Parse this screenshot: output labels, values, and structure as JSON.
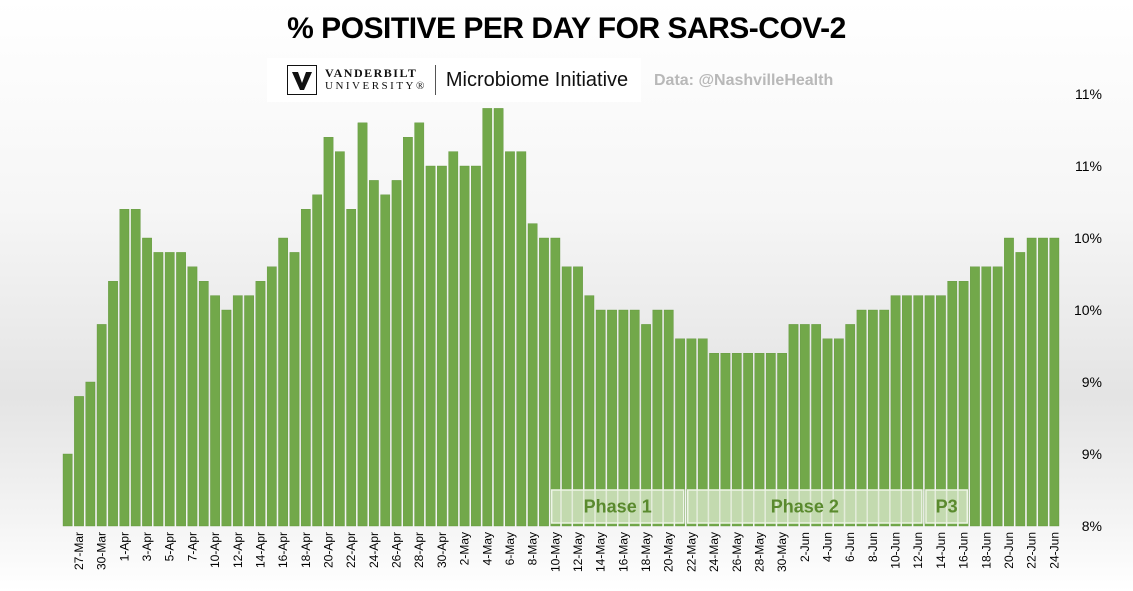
{
  "title": "% POSITIVE PER DAY FOR SARS-COV-2",
  "logo": {
    "university_line1": "VANDERBILT",
    "university_line2": "UNIVERSITY®",
    "initiative": "Microbiome Initiative"
  },
  "source": "Data: @NashvilleHealth",
  "colors": {
    "bar": "#72a84a",
    "bar_edge": "#5e9438",
    "phase_fill": "#dfebd2",
    "phase_text": "#5a8a2e"
  },
  "chart_data": {
    "type": "bar",
    "title": "% POSITIVE PER DAY FOR SARS-COV-2",
    "xlabel": "",
    "ylabel": "",
    "ylim": [
      8,
      11
    ],
    "grid": false,
    "y_tick_values": [
      8,
      8.5,
      9,
      9.5,
      10,
      10.5,
      11
    ],
    "y_tick_labels": [
      "8%",
      "9%",
      "9%",
      "10%",
      "10%",
      "11%",
      "11%"
    ],
    "x_tick_labels": [
      "27-Mar",
      "30-Mar",
      "1-Apr",
      "3-Apr",
      "5-Apr",
      "7-Apr",
      "10-Apr",
      "12-Apr",
      "14-Apr",
      "16-Apr",
      "18-Apr",
      "20-Apr",
      "22-Apr",
      "24-Apr",
      "26-Apr",
      "28-Apr",
      "30-Apr",
      "2-May",
      "4-May",
      "6-May",
      "8-May",
      "10-May",
      "12-May",
      "14-May",
      "16-May",
      "18-May",
      "20-May",
      "22-May",
      "24-May",
      "26-May",
      "28-May",
      "30-May",
      "2-Jun",
      "4-Jun",
      "6-Jun",
      "8-Jun",
      "10-Jun",
      "12-Jun",
      "14-Jun",
      "16-Jun",
      "18-Jun",
      "20-Jun",
      "22-Jun",
      "24-Jun"
    ],
    "values": [
      8.5,
      8.9,
      9.0,
      9.4,
      9.7,
      10.2,
      10.2,
      10.0,
      9.9,
      9.9,
      9.9,
      9.8,
      9.7,
      9.6,
      9.5,
      9.6,
      9.6,
      9.7,
      9.8,
      10.0,
      9.9,
      10.2,
      10.3,
      10.7,
      10.6,
      10.2,
      10.8,
      10.4,
      10.3,
      10.4,
      10.7,
      10.8,
      10.5,
      10.5,
      10.6,
      10.5,
      10.5,
      10.9,
      10.9,
      10.6,
      10.6,
      10.1,
      10.0,
      10.0,
      9.8,
      9.8,
      9.6,
      9.5,
      9.5,
      9.5,
      9.5,
      9.4,
      9.5,
      9.5,
      9.3,
      9.3,
      9.3,
      9.2,
      9.2,
      9.2,
      9.2,
      9.2,
      9.2,
      9.2,
      9.4,
      9.4,
      9.4,
      9.3,
      9.3,
      9.4,
      9.5,
      9.5,
      9.5,
      9.6,
      9.6,
      9.6,
      9.6,
      9.6,
      9.7,
      9.7,
      9.8,
      9.8,
      9.8,
      10.0,
      9.9,
      10.0,
      10.0,
      10.0
    ],
    "phases": [
      {
        "label": "Phase 1",
        "start_index": 43,
        "end_index": 54
      },
      {
        "label": "Phase 2",
        "start_index": 55,
        "end_index": 75
      },
      {
        "label": "P3",
        "start_index": 76,
        "end_index": 79
      }
    ]
  }
}
